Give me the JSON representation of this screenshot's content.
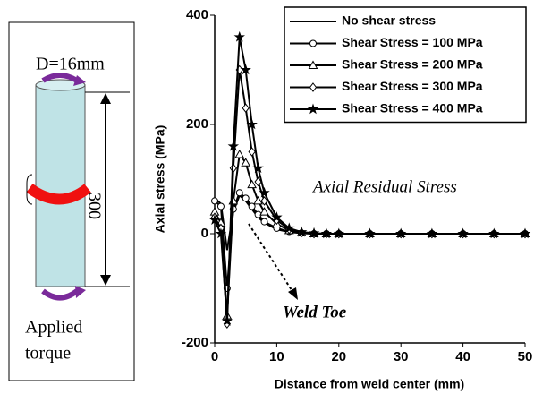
{
  "diagram": {
    "dimension_label": "D=16mm",
    "length_label": "300",
    "load_label": [
      "Applied",
      "torque"
    ]
  },
  "chart_data": {
    "type": "line",
    "x_label": "Distance from weld center (mm)",
    "y_label": "Axial stress (MPa)",
    "annotations": [
      "Axial Residual Stress",
      "Weld Toe"
    ],
    "x": [
      0,
      1,
      2,
      3,
      4,
      5,
      6,
      7,
      8,
      10,
      12,
      14,
      16,
      18,
      20,
      25,
      30,
      35,
      40,
      45,
      50
    ],
    "series": [
      {
        "name": "No shear stress",
        "color": "#000000",
        "values": [
          65,
          55,
          -30,
          40,
          70,
          60,
          45,
          30,
          20,
          8,
          3,
          1,
          0,
          0,
          0,
          0,
          0,
          0,
          0,
          0,
          0
        ]
      },
      {
        "name": "Shear Stress = 100 MPa",
        "color": "#000000",
        "marker": "circle",
        "values": [
          60,
          50,
          -100,
          45,
          75,
          65,
          50,
          35,
          22,
          10,
          4,
          1,
          0,
          0,
          0,
          0,
          0,
          0,
          0,
          0,
          0
        ]
      },
      {
        "name": "Shear Stress = 200 MPa",
        "color": "#000000",
        "marker": "triangle",
        "values": [
          40,
          20,
          -150,
          60,
          145,
          130,
          90,
          60,
          40,
          18,
          6,
          2,
          0,
          0,
          0,
          0,
          0,
          0,
          0,
          0,
          0
        ]
      },
      {
        "name": "Shear Stress = 300 MPa",
        "color": "#000000",
        "marker": "diamond",
        "values": [
          30,
          10,
          -165,
          120,
          300,
          230,
          150,
          95,
          60,
          25,
          8,
          2,
          0,
          0,
          0,
          0,
          0,
          0,
          0,
          0,
          0
        ]
      },
      {
        "name": "Shear Stress = 400 MPa",
        "color": "#000000",
        "marker": "star",
        "values": [
          25,
          0,
          -160,
          160,
          360,
          300,
          200,
          120,
          75,
          30,
          10,
          3,
          1,
          0,
          0,
          0,
          0,
          0,
          0,
          0,
          0
        ]
      }
    ],
    "xlim": [
      0,
      50
    ],
    "xticks": [
      0,
      10,
      20,
      30,
      40,
      50
    ],
    "ylim": [
      -200,
      400
    ],
    "yticks": [
      -200,
      0,
      200,
      400
    ],
    "grid": false,
    "legend": "top-right"
  }
}
